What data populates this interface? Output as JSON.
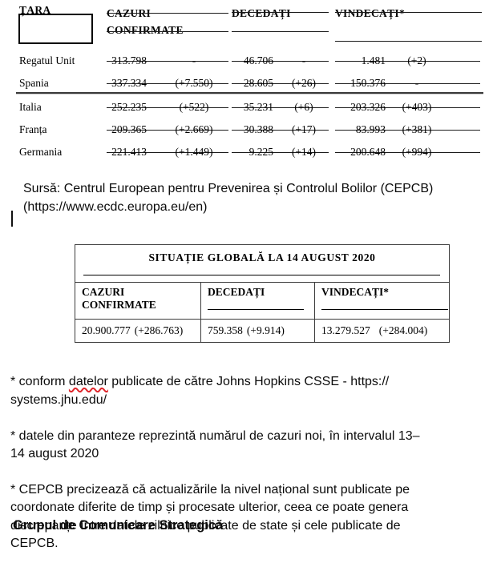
{
  "document": {
    "country_table": {
      "header": {
        "country": "ȚARA",
        "confirmed_l1": "CAZURI",
        "confirmed_l2": "CONFIRMATE",
        "deaths": "DECEDAȚI",
        "recovered": "VINDECAȚI*"
      },
      "rows": [
        {
          "country": "Regatul Unit",
          "confirmed": "313.798",
          "confirmed_delta": "-",
          "deaths": "46.706",
          "deaths_delta": "-",
          "recovered": "1.481",
          "recovered_delta": "(+2)"
        },
        {
          "country": "Spania",
          "confirmed": "337.334",
          "confirmed_delta": "(+7.550)",
          "deaths": "28.605",
          "deaths_delta": "(+26)",
          "recovered": "150.376",
          "recovered_delta": "-"
        },
        {
          "country": "Italia",
          "confirmed": "252.235",
          "confirmed_delta": "(+522)",
          "deaths": "35.231",
          "deaths_delta": "(+6)",
          "recovered": "203.326",
          "recovered_delta": "(+403)"
        },
        {
          "country": "Franța",
          "confirmed": "209.365",
          "confirmed_delta": "(+2.669)",
          "deaths": "30.388",
          "deaths_delta": "(+17)",
          "recovered": "83.993",
          "recovered_delta": "(+381)"
        },
        {
          "country": "Germania",
          "confirmed": "221.413",
          "confirmed_delta": "(+1.449)",
          "deaths": "9.225",
          "deaths_delta": "(+14)",
          "recovered": "200.648",
          "recovered_delta": "(+994)"
        }
      ]
    },
    "source_note": "Sursă: Centrul European pentru Prevenirea și Controlul Bolilor (CEPCB)\n(https://www.ecdc.europa.eu/en)",
    "global_table": {
      "title": "SITUAȚIE GLOBALĂ LA 14 AUGUST 2020",
      "header": {
        "confirmed_l1": "CAZURI",
        "confirmed_l2": "CONFIRMATE",
        "deaths": "DECEDAȚI",
        "recovered": "VINDECAȚI*"
      },
      "row": {
        "confirmed": "20.900.777",
        "confirmed_delta": "(+286.763)",
        "deaths": "759.358",
        "deaths_delta": "(+9.914)",
        "recovered": "13.279.527",
        "recovered_delta": "(+284.004)"
      }
    },
    "footnotes": {
      "f1_prefix": "* conform ",
      "f1_misspelled": "datelor",
      "f1_suffix": " publicate de către Johns Hopkins CSSE - https://\nsystems.jhu.edu/",
      "f2": "* datele din paranteze reprezintă numărul de cazuri noi, în intervalul 13–\n14 august 2020",
      "f3": "* CEPCB precizează că actualizările la nivel național sunt publicate pe\ncoordonate diferite de timp și procesate ulterior, ceea ce poate genera\ndiscrepanțe între datele zilnice publicate de state și cele publicate de\nCEPCB."
    },
    "signature": "Grupul de Comunicare Strategică",
    "colors": {
      "text": "#000000",
      "table_line": "#1a1a1a",
      "divider_dark": "#3a3a3a",
      "divider_light": "#cccccc",
      "table_border": "#3c3c3c",
      "spellcheck_underline": "#e0262b"
    }
  }
}
